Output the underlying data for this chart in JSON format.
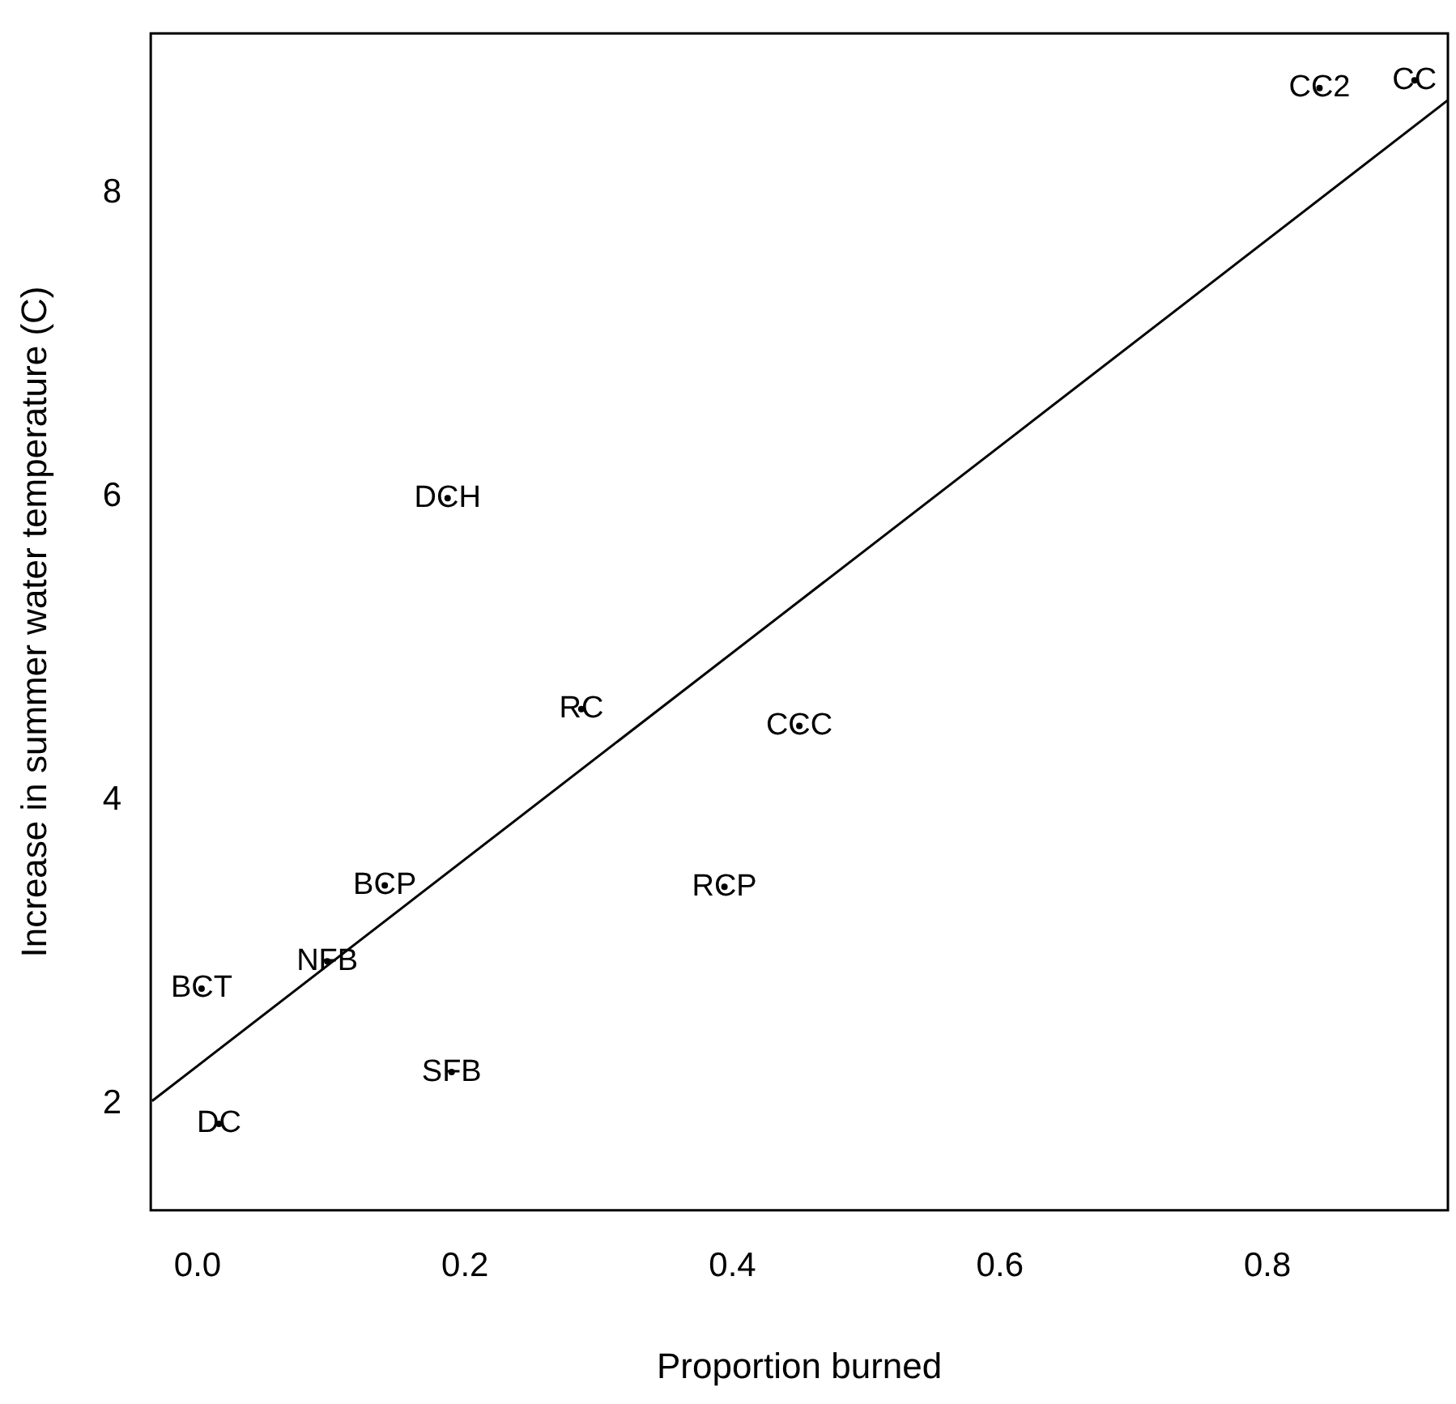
{
  "chart_data": {
    "type": "scatter",
    "xlabel": "Proportion burned",
    "ylabel": "Increase in summer water temperature (C)",
    "xlim": [
      -0.035,
      0.935
    ],
    "ylim": [
      1.3,
      9.05
    ],
    "xticks": [
      {
        "value": 0,
        "label": "0.0"
      },
      0.2,
      0.4,
      0.6,
      0.8
    ],
    "yticks": [
      2,
      4,
      6,
      8
    ],
    "grid": false,
    "legend": false,
    "series": [
      {
        "color": "#000000",
        "marker": "circle",
        "x": [
          0.016,
          0.003,
          0.097,
          0.19,
          0.14,
          0.287,
          0.394,
          0.45,
          0.187,
          0.839,
          0.91
        ],
        "values": [
          1.87,
          2.76,
          2.94,
          2.21,
          3.44,
          4.6,
          3.43,
          4.49,
          5.99,
          8.69,
          8.74
        ],
        "value_labels": [
          "DC",
          "BCT",
          "NFB",
          "SFB",
          "BCP",
          "RC",
          "RCP",
          "CCC",
          "DCH",
          "CC2",
          "CC"
        ]
      },
      {
        "type": "line",
        "color": "#000000",
        "x": [
          -0.034,
          0.935
        ],
        "values": [
          2.02,
          8.61
        ]
      }
    ]
  }
}
